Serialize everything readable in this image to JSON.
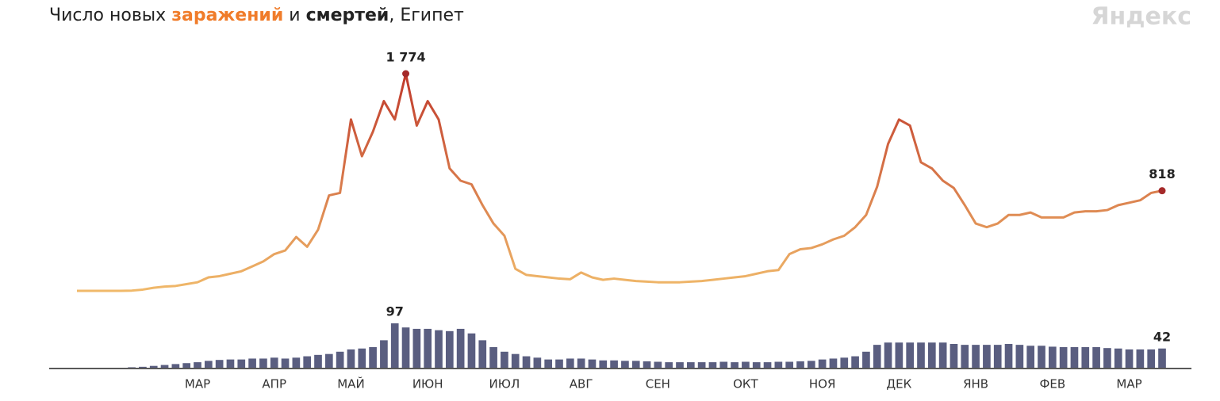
{
  "chart_data": {
    "type": "line-bar",
    "title_parts": [
      "Число новых ",
      "заражений",
      " и ",
      "смертей",
      ", Египет"
    ],
    "brand": "Яндекс",
    "categories": [
      null,
      null,
      null,
      null,
      null,
      null,
      null,
      null,
      null,
      null,
      null,
      "МАР",
      null,
      null,
      null,
      null,
      null,
      null,
      "АПР",
      null,
      null,
      null,
      null,
      null,
      null,
      "МАЙ",
      null,
      null,
      null,
      null,
      null,
      null,
      "ИЮН",
      null,
      null,
      null,
      null,
      null,
      null,
      "ИЮЛ",
      null,
      null,
      null,
      null,
      null,
      null,
      "АВГ",
      null,
      null,
      null,
      null,
      null,
      null,
      "СЕН",
      null,
      null,
      null,
      null,
      null,
      null,
      null,
      "ОКТ",
      null,
      null,
      null,
      null,
      null,
      null,
      "НОЯ",
      null,
      null,
      null,
      null,
      null,
      null,
      "ДЕК",
      null,
      null,
      null,
      null,
      null,
      null,
      "ЯНВ",
      null,
      null,
      null,
      null,
      null,
      null,
      "ФЕВ",
      null,
      null,
      null,
      null,
      null,
      null,
      "МАР",
      null,
      null,
      null
    ],
    "series": [
      {
        "name": "заражений",
        "kind": "line",
        "color": "#f0b96a",
        "color_peak": "#c0392b",
        "values": [
          0,
          0,
          0,
          0,
          0,
          2,
          10,
          25,
          35,
          40,
          55,
          70,
          110,
          120,
          140,
          160,
          200,
          240,
          300,
          330,
          440,
          360,
          500,
          780,
          800,
          1400,
          1100,
          1300,
          1550,
          1400,
          1774,
          1350,
          1550,
          1400,
          1000,
          900,
          870,
          700,
          550,
          450,
          180,
          130,
          120,
          110,
          100,
          95,
          150,
          110,
          90,
          100,
          90,
          80,
          75,
          70,
          70,
          70,
          75,
          80,
          90,
          100,
          110,
          120,
          140,
          160,
          170,
          300,
          340,
          350,
          380,
          420,
          450,
          520,
          620,
          850,
          1200,
          1400,
          1350,
          1050,
          1000,
          900,
          840,
          700,
          550,
          520,
          550,
          620,
          620,
          640,
          600,
          600,
          600,
          640,
          650,
          650,
          660,
          700,
          720,
          740,
          800,
          818
        ],
        "value_labels": [
          null,
          null,
          null,
          null,
          null,
          null,
          null,
          null,
          null,
          null,
          null,
          null,
          null,
          null,
          null,
          null,
          null,
          null,
          null,
          null,
          null,
          null,
          null,
          null,
          null,
          null,
          null,
          null,
          null,
          null,
          "1 774",
          null,
          null,
          null,
          null,
          null,
          null,
          null,
          null,
          null,
          null,
          null,
          null,
          null,
          null,
          null,
          null,
          null,
          null,
          null,
          null,
          null,
          null,
          null,
          null,
          null,
          null,
          null,
          null,
          null,
          null,
          null,
          null,
          null,
          null,
          null,
          null,
          null,
          null,
          null,
          null,
          null,
          null,
          null,
          null,
          null,
          null,
          null,
          null,
          null,
          null,
          null,
          null,
          null,
          null,
          null,
          null,
          null,
          null,
          null,
          null,
          null,
          null,
          null,
          null,
          null,
          null,
          null,
          null,
          null
        ]
      },
      {
        "name": "смертей",
        "kind": "bar",
        "color": "#5a5e80",
        "values": [
          0,
          0,
          0,
          0,
          0,
          1,
          2,
          4,
          6,
          8,
          10,
          12,
          15,
          17,
          18,
          18,
          20,
          20,
          22,
          20,
          22,
          25,
          28,
          30,
          35,
          40,
          42,
          45,
          60,
          97,
          88,
          85,
          85,
          82,
          80,
          85,
          75,
          60,
          45,
          35,
          30,
          25,
          22,
          18,
          18,
          20,
          20,
          18,
          16,
          16,
          15,
          15,
          14,
          13,
          12,
          12,
          12,
          12,
          12,
          13,
          12,
          13,
          12,
          12,
          13,
          13,
          14,
          15,
          18,
          20,
          22,
          25,
          35,
          50,
          55,
          55,
          55,
          55,
          55,
          55,
          52,
          50,
          50,
          50,
          50,
          52,
          50,
          48,
          48,
          46,
          45,
          45,
          45,
          45,
          43,
          42,
          40,
          40,
          40,
          42
        ]
      }
    ]
  }
}
